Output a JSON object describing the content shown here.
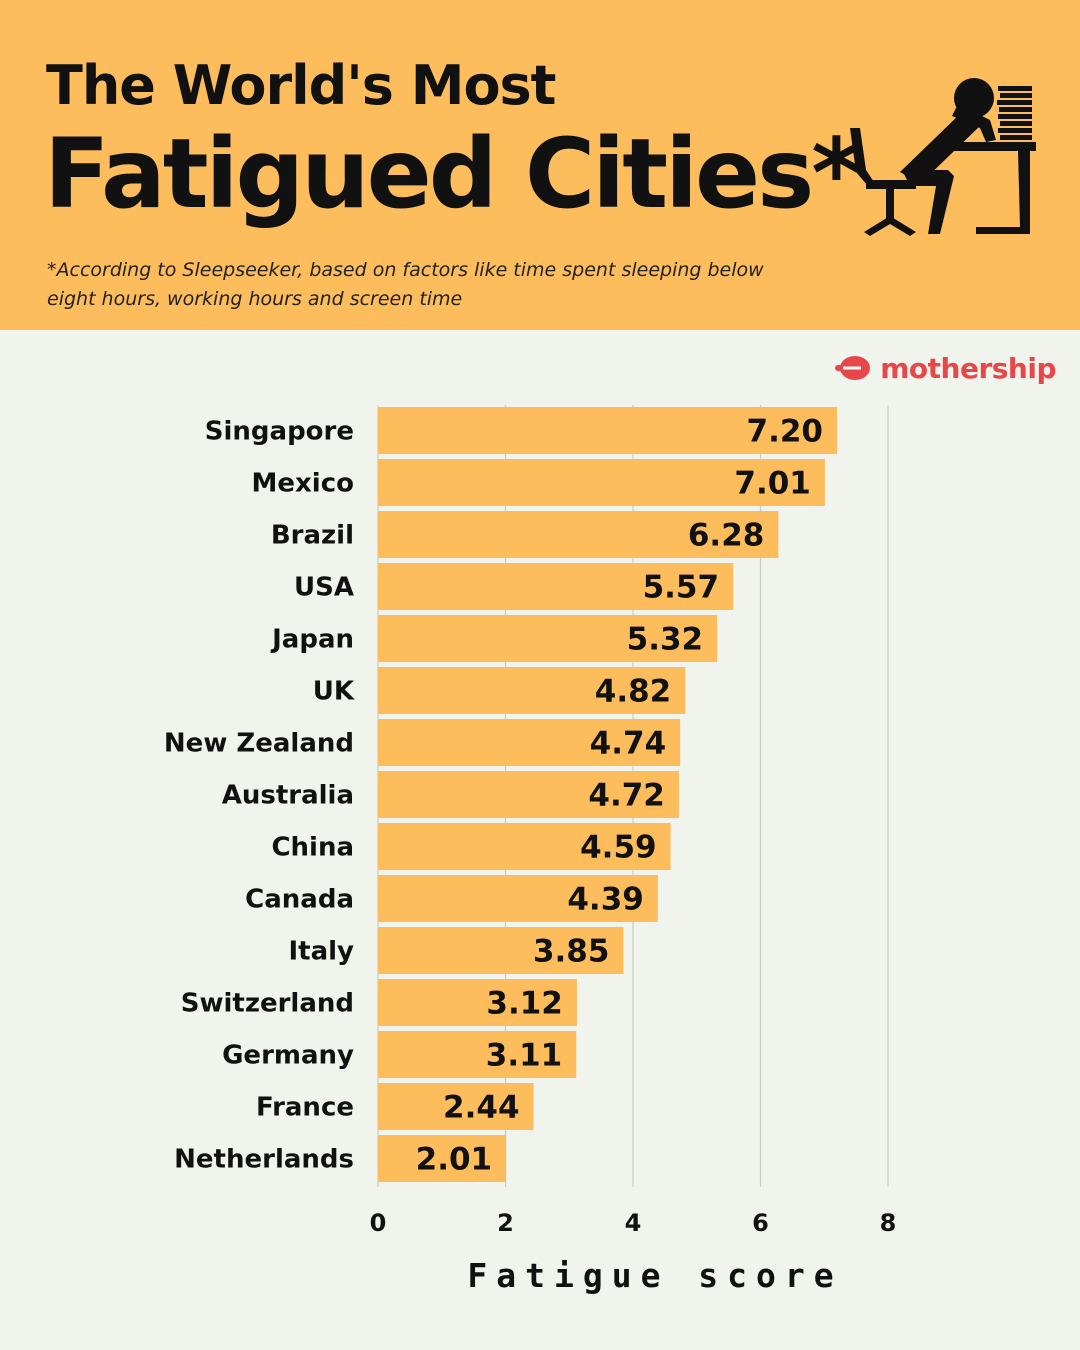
{
  "header": {
    "title_line1": "The World's Most",
    "title_line2": "Fatigued Cities*",
    "subtitle": "*According to Sleepseeker, based on factors like time spent sleeping below eight hours, working hours and screen time",
    "illustration_icon": "tired-worker-at-desk-icon",
    "background_color": "#fdbd5c"
  },
  "brand": {
    "name": "mothership",
    "logo_icon": "mothership-logo-icon",
    "color": "#e8474a"
  },
  "chart_data": {
    "type": "bar",
    "orientation": "horizontal",
    "categories": [
      "Singapore",
      "Mexico",
      "Brazil",
      "USA",
      "Japan",
      "UK",
      "New Zealand",
      "Australia",
      "China",
      "Canada",
      "Italy",
      "Switzerland",
      "Germany",
      "France",
      "Netherlands"
    ],
    "values": [
      7.2,
      7.01,
      6.28,
      5.57,
      5.32,
      4.82,
      4.74,
      4.72,
      4.59,
      4.39,
      3.85,
      3.12,
      3.11,
      2.44,
      2.01
    ],
    "value_labels": [
      "7.20",
      "7.01",
      "6.28",
      "5.57",
      "5.32",
      "4.82",
      "4.74",
      "4.72",
      "4.59",
      "4.39",
      "3.85",
      "3.12",
      "3.11",
      "2.44",
      "2.01"
    ],
    "xlabel": "Fatigue score",
    "xlim": [
      0,
      8
    ],
    "xticks": [
      "0",
      "2",
      "4",
      "6",
      "8"
    ],
    "grid": true,
    "bar_color": "#fdbd5c"
  }
}
